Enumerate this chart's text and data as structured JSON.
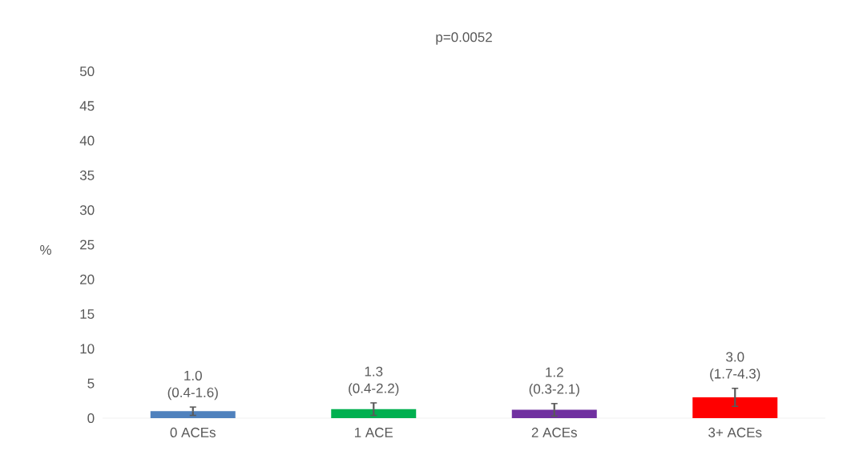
{
  "chart_data": {
    "type": "bar",
    "title": "p=0.0052",
    "ylabel": "%",
    "categories": [
      "0 ACEs",
      "1 ACE",
      "2 ACEs",
      "3+ ACEs"
    ],
    "values": [
      1.0,
      1.3,
      1.2,
      3.0
    ],
    "colors": [
      "#4f81bd",
      "#00b050",
      "#7030a0",
      "#ff0000"
    ],
    "errors": [
      [
        0.4,
        1.6
      ],
      [
        0.4,
        2.2
      ],
      [
        0.3,
        2.1
      ],
      [
        1.7,
        4.3
      ]
    ],
    "value_labels": [
      "1.0 (0.4-1.6)",
      "1.3 (0.4-2.2)",
      "1.2 (0.3-2.1)",
      "3.0 (1.7-4.3)"
    ],
    "ylim": [
      0,
      50
    ],
    "yticks": [
      0,
      5,
      10,
      15,
      20,
      25,
      30,
      35,
      40,
      45,
      50
    ]
  }
}
